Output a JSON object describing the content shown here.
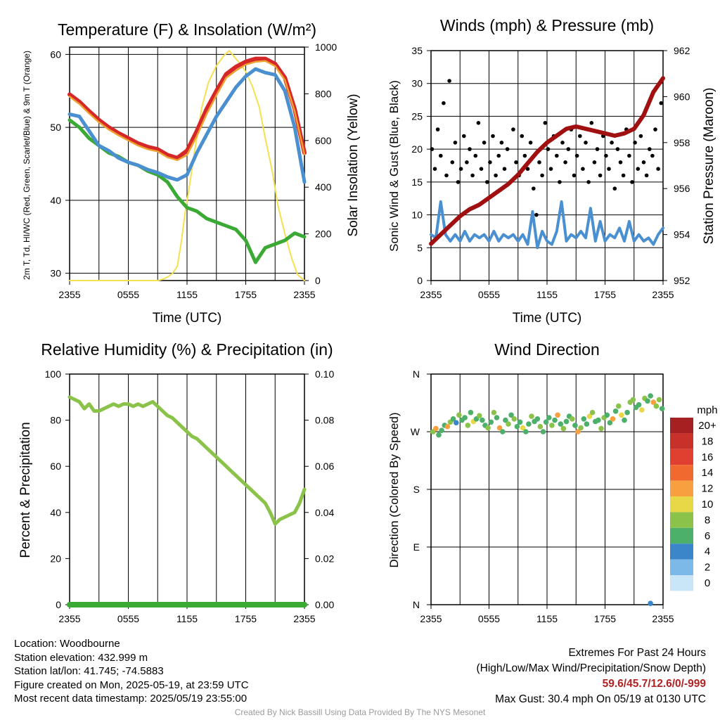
{
  "temperature_panel": {
    "title": "Temperature (F) & Insolation (W/m²)",
    "left_axis_label": "2m T, Td, HI/WC (Red, Green, Scarlet/Blue) & 9m T (Orange)",
    "right_axis_label": "Solar Insolation (Yellow)",
    "x_axis_label": "Time (UTC)"
  },
  "winds_panel": {
    "title": "Winds (mph) & Pressure (mb)",
    "left_axis_label": "Sonic Wind & Gust (Blue, Black)",
    "right_axis_label": "Station Pressure (Maroon)",
    "x_axis_label": "Time (UTC)"
  },
  "humidity_panel": {
    "title": "Relative Humidity (%) & Precipitation (in)",
    "left_axis_label": "Percent & Precipitation"
  },
  "direction_panel": {
    "title": "Wind Direction",
    "left_axis_label": "Direction (Colored By Speed)",
    "legend_title": "mph"
  },
  "footer": {
    "location": "Location: Woodbourne",
    "elevation": "Station elevation: 432.999 m",
    "latlon": "Station lat/lon: 41.745; -74.5883",
    "created": "Figure created on Mon, 2025-05-19, at 23:59 UTC",
    "recent": "Most recent data timestamp: 2025/05/19 23:55:00",
    "extremes_title": "Extremes For Past 24 Hours",
    "extremes_subtitle": "(High/Low/Max Wind/Precipitation/Snow Depth)",
    "extremes_values": "59.6/45.7/12.6/0/-999",
    "max_gust": "Max Gust: 30.4 mph On 05/19 at 0130 UTC",
    "credit": "Created By Nick Bassill Using Data Provided By The NYS Mesonet"
  },
  "colors": {
    "temperature": "#d62728",
    "heat_index_wind_chill": "#2f2f2f",
    "temp_9m": "#f0a030",
    "dewpoint": "#3aaa35",
    "scarlet_blue": "#4a90d0",
    "insolation": "#f5e050",
    "wind": "#4a90d0",
    "gust": "#000000",
    "pressure": "#a01010",
    "humidity": "#8bc34a",
    "precipitation": "#3aaa35"
  },
  "chart_data": [
    {
      "type": "line",
      "x_ticks": [
        "2355",
        "0555",
        "1155",
        "1755",
        "2355"
      ],
      "ylim": [
        29,
        61
      ],
      "y_ticks": [
        30,
        40,
        50,
        60
      ],
      "y2lim": [
        0,
        1000
      ],
      "y2_ticks": [
        0,
        200,
        400,
        600,
        800,
        1000
      ],
      "series": [
        {
          "key": "temp_2m",
          "axis": "left",
          "color": "#d62728",
          "x": [
            0,
            1,
            2,
            3,
            4,
            5,
            6,
            7,
            8,
            9,
            10,
            11,
            12,
            13,
            14,
            15,
            16,
            17,
            18,
            19,
            20,
            21,
            22,
            23,
            24
          ],
          "y": [
            54.5,
            53.5,
            52.2,
            51.0,
            50.0,
            49.2,
            48.5,
            47.8,
            47.3,
            47.0,
            46.2,
            45.8,
            46.8,
            49.5,
            52.5,
            55.0,
            57.3,
            58.3,
            59.0,
            59.4,
            59.4,
            58.7,
            56.8,
            52.5,
            46.5
          ]
        },
        {
          "key": "temp_9m",
          "axis": "left",
          "color": "#f0a030",
          "x": [
            0,
            1,
            2,
            3,
            4,
            5,
            6,
            7,
            8,
            9,
            10,
            11,
            12,
            13,
            14,
            15,
            16,
            17,
            18,
            19,
            20,
            21,
            22,
            23,
            24
          ],
          "y": [
            54.2,
            53.2,
            51.9,
            50.7,
            49.7,
            48.9,
            48.2,
            47.5,
            47.0,
            46.7,
            45.9,
            45.5,
            46.2,
            48.8,
            51.8,
            54.4,
            56.8,
            57.8,
            58.6,
            59.0,
            59.1,
            58.4,
            56.5,
            52.2,
            46.3
          ]
        },
        {
          "key": "heat_index_wind_chill",
          "axis": "left",
          "color": "#4a90d0",
          "x": [
            0,
            1,
            2,
            3,
            4,
            5,
            6,
            7,
            8,
            9,
            10,
            11,
            12,
            13,
            14,
            15,
            16,
            17,
            18,
            19,
            20,
            21,
            22,
            23,
            24
          ],
          "y": [
            51.8,
            51.5,
            49.5,
            47.5,
            46.8,
            45.8,
            45.2,
            44.8,
            44.2,
            43.8,
            43.2,
            42.8,
            43.5,
            46.5,
            49.0,
            51.5,
            53.5,
            55.5,
            57.0,
            58.0,
            57.5,
            57.2,
            55.0,
            50.0,
            42.5
          ]
        },
        {
          "key": "dewpoint",
          "axis": "left",
          "color": "#3aaa35",
          "x": [
            0,
            1,
            2,
            3,
            4,
            5,
            6,
            7,
            8,
            9,
            10,
            11,
            12,
            13,
            14,
            15,
            16,
            17,
            18,
            19,
            20,
            21,
            22,
            23,
            24
          ],
          "y": [
            51.0,
            50.0,
            48.5,
            47.5,
            46.5,
            46.0,
            45.2,
            44.8,
            44.0,
            43.5,
            42.5,
            40.5,
            39.0,
            38.5,
            37.5,
            37.0,
            36.5,
            36.0,
            34.5,
            31.5,
            33.5,
            34.0,
            34.5,
            35.5,
            35.0
          ]
        },
        {
          "key": "insolation",
          "axis": "right",
          "color": "#f5e050",
          "x": [
            0,
            2,
            4,
            6,
            8,
            9,
            9.5,
            10,
            10.5,
            11,
            11.4,
            11.8,
            12.3,
            12.8,
            13.5,
            14.2,
            15,
            15.7,
            16.3,
            16.8,
            17.3,
            18,
            18.7,
            19.4,
            20,
            20.7,
            21.3,
            22,
            22.7,
            23.3,
            24
          ],
          "y": [
            0,
            0,
            0,
            0,
            0,
            0,
            5,
            15,
            30,
            60,
            160,
            290,
            420,
            560,
            740,
            850,
            920,
            960,
            985,
            960,
            935,
            895,
            830,
            740,
            610,
            470,
            320,
            200,
            95,
            25,
            0
          ]
        }
      ]
    },
    {
      "type": "line",
      "x_ticks": [
        "2355",
        "0555",
        "1155",
        "1755",
        "2355"
      ],
      "ylim": [
        0,
        35
      ],
      "y_ticks": [
        0,
        5,
        10,
        15,
        20,
        25,
        30,
        35
      ],
      "y2lim": [
        952,
        962
      ],
      "y2_ticks": [
        952,
        954,
        956,
        958,
        960,
        962
      ],
      "series": [
        {
          "key": "pressure",
          "axis": "right",
          "color": "#a01010",
          "x": [
            0,
            1,
            2,
            3,
            4,
            5,
            6,
            7,
            8,
            9,
            10,
            11,
            12,
            13,
            14,
            15,
            16,
            17,
            18,
            19,
            20,
            21,
            22,
            23,
            24
          ],
          "y": [
            953.6,
            954.0,
            954.4,
            954.8,
            955.1,
            955.3,
            955.6,
            955.9,
            956.2,
            956.6,
            957.1,
            957.6,
            958.0,
            958.3,
            958.6,
            958.7,
            958.6,
            958.5,
            958.4,
            958.3,
            958.4,
            958.6,
            959.2,
            960.2,
            960.8
          ]
        },
        {
          "key": "sonic_wind",
          "axis": "left",
          "color": "#4a90d0",
          "x": [
            0,
            0.5,
            1,
            1.5,
            2,
            2.5,
            3,
            3.5,
            4,
            4.5,
            5,
            5.5,
            6,
            6.5,
            7,
            7.5,
            8,
            8.5,
            9,
            9.5,
            10,
            10.5,
            11,
            11.5,
            12,
            12.5,
            13,
            13.5,
            14,
            14.5,
            15,
            15.5,
            16,
            16.5,
            17,
            17.5,
            18,
            18.5,
            19,
            19.5,
            20,
            20.5,
            21,
            21.5,
            22,
            22.5,
            23,
            23.5,
            24
          ],
          "y": [
            7,
            6.5,
            12,
            7,
            6,
            7,
            6,
            7.5,
            6,
            7,
            6.5,
            7,
            6,
            7.5,
            6,
            7,
            6.5,
            7,
            6,
            7,
            5.5,
            10.5,
            5,
            7.5,
            6,
            5.5,
            7.5,
            12,
            6,
            7,
            6.5,
            7.5,
            6.5,
            11,
            6,
            9,
            6,
            7,
            6.5,
            8,
            6,
            9,
            6,
            7,
            6,
            6.5,
            5.5,
            7,
            8
          ]
        },
        {
          "key": "gust",
          "axis": "left",
          "color": "#000000",
          "style": "scatter",
          "x": [
            0.1,
            0.4,
            0.7,
            1.0,
            1.3,
            1.6,
            1.9,
            2.2,
            2.5,
            2.8,
            3.1,
            3.4,
            3.7,
            4.0,
            4.3,
            4.6,
            4.9,
            5.2,
            5.5,
            5.8,
            6.1,
            6.4,
            6.7,
            7.0,
            7.3,
            7.6,
            7.9,
            8.2,
            8.5,
            8.8,
            9.1,
            9.4,
            9.7,
            10.0,
            10.3,
            10.6,
            10.9,
            11.2,
            11.5,
            11.8,
            12.1,
            12.4,
            12.7,
            13.0,
            13.3,
            13.6,
            13.9,
            14.2,
            14.5,
            14.8,
            15.1,
            15.4,
            15.7,
            16.0,
            16.3,
            16.6,
            16.9,
            17.2,
            17.5,
            17.8,
            18.1,
            18.4,
            18.7,
            19.0,
            19.3,
            19.6,
            19.9,
            20.2,
            20.5,
            20.8,
            21.1,
            21.4,
            21.7,
            22.0,
            22.3,
            22.6,
            22.9,
            23.2,
            23.5,
            23.8
          ],
          "y": [
            20,
            17,
            23,
            19,
            27,
            16,
            30.4,
            18,
            21,
            15,
            17,
            22,
            18,
            20,
            16,
            19,
            24,
            17,
            21,
            15,
            18,
            22,
            16,
            19,
            21,
            17,
            20,
            15,
            23,
            18,
            16,
            22,
            19,
            17,
            21,
            14,
            10,
            18,
            16,
            24,
            20,
            17,
            22,
            19,
            15,
            21,
            18,
            20,
            23,
            16,
            19,
            22,
            17,
            21,
            15,
            24,
            18,
            20,
            16,
            22,
            19,
            17,
            21,
            14,
            20,
            18,
            16,
            23,
            19,
            15,
            21,
            17,
            22,
            18,
            16,
            20,
            19,
            23,
            17,
            27
          ]
        }
      ]
    },
    {
      "type": "line",
      "x_ticks": [
        "2355",
        "0555",
        "1155",
        "1755",
        "2355"
      ],
      "ylim": [
        0,
        100
      ],
      "y_ticks": [
        0,
        20,
        40,
        60,
        80,
        100
      ],
      "y2lim": [
        0,
        0.1
      ],
      "y2_ticks": [
        "0.00",
        "0.02",
        "0.04",
        "0.06",
        "0.08",
        "0.10"
      ],
      "series": [
        {
          "key": "humidity",
          "axis": "left",
          "color": "#8bc34a",
          "x": [
            0,
            0.5,
            1,
            1.5,
            2,
            2.5,
            3,
            3.5,
            4,
            4.5,
            5,
            5.5,
            6,
            6.5,
            7,
            7.5,
            8,
            8.5,
            9,
            9.5,
            10,
            10.5,
            11,
            11.5,
            12,
            12.5,
            13,
            13.5,
            14,
            14.5,
            15,
            15.5,
            16,
            16.5,
            17,
            17.5,
            18,
            18.5,
            19,
            19.5,
            20,
            20.5,
            21,
            21.5,
            22,
            22.5,
            23,
            23.5,
            24
          ],
          "y": [
            90,
            89,
            88,
            85,
            87,
            84,
            84,
            85,
            86,
            87,
            86,
            87,
            87,
            86,
            87,
            86,
            87,
            88,
            86,
            84,
            82,
            81,
            79,
            77,
            75,
            73,
            72,
            70,
            68,
            66,
            64,
            62,
            60,
            58,
            56,
            54,
            52,
            50,
            48,
            46,
            44,
            40,
            35,
            37,
            38,
            39,
            40,
            44,
            50
          ]
        },
        {
          "key": "precipitation",
          "axis": "right",
          "color": "#3aaa35",
          "x": [
            0,
            24
          ],
          "y": [
            0,
            0
          ]
        }
      ]
    },
    {
      "type": "scatter",
      "x_ticks": [
        "2355",
        "0555",
        "1155",
        "1755",
        "2355"
      ],
      "y_ticks": [
        "N",
        "E",
        "S",
        "W",
        "N"
      ],
      "ylim": [
        0,
        360
      ],
      "legend_items": [
        "20+",
        "18",
        "16",
        "14",
        "12",
        "10",
        "8",
        "6",
        "4",
        "2",
        "0"
      ],
      "legend_colors": [
        "#a52020",
        "#c8302a",
        "#e04030",
        "#f06a30",
        "#f8a040",
        "#e8d848",
        "#8bc34a",
        "#4caf6a",
        "#3a86c8",
        "#7cb8e8",
        "#c8e6f8"
      ],
      "x": [
        0.2,
        0.5,
        0.8,
        1.1,
        1.4,
        1.7,
        2.0,
        2.3,
        2.6,
        2.9,
        3.2,
        3.5,
        3.8,
        4.1,
        4.4,
        4.7,
        5.0,
        5.3,
        5.6,
        5.9,
        6.2,
        6.5,
        6.8,
        7.1,
        7.4,
        7.7,
        8.0,
        8.3,
        8.6,
        8.9,
        9.2,
        9.5,
        9.8,
        10.1,
        10.4,
        10.7,
        11.0,
        11.3,
        11.6,
        11.9,
        12.2,
        12.5,
        12.8,
        13.1,
        13.4,
        13.7,
        14.0,
        14.3,
        14.6,
        14.9,
        15.2,
        15.5,
        15.8,
        16.1,
        16.4,
        16.7,
        17.0,
        17.3,
        17.6,
        17.9,
        18.2,
        18.5,
        18.8,
        19.1,
        19.4,
        19.7,
        20.0,
        20.3,
        20.6,
        20.9,
        21.2,
        21.5,
        21.8,
        22.1,
        22.4,
        22.7,
        23.0,
        23.3,
        23.6,
        23.9,
        22.7
      ],
      "y": [
        270,
        275,
        265,
        272,
        280,
        278,
        285,
        290,
        284,
        296,
        288,
        292,
        280,
        300,
        286,
        290,
        295,
        288,
        280,
        276,
        285,
        300,
        292,
        276,
        270,
        288,
        282,
        296,
        290,
        278,
        285,
        276,
        270,
        282,
        294,
        286,
        290,
        278,
        270,
        285,
        292,
        280,
        288,
        296,
        282,
        275,
        286,
        294,
        290,
        280,
        270,
        276,
        290,
        282,
        294,
        300,
        286,
        288,
        275,
        292,
        296,
        284,
        290,
        302,
        310,
        296,
        288,
        300,
        316,
        320,
        308,
        312,
        304,
        322,
        318,
        326,
        316,
        310,
        320,
        306,
        2
      ],
      "speeds": [
        8,
        12,
        6,
        7,
        6,
        12,
        8,
        6,
        4,
        8,
        6,
        7,
        8,
        6,
        10,
        7,
        8,
        6,
        7,
        9,
        6,
        8,
        7,
        12,
        6,
        7,
        9,
        6,
        8,
        7,
        6,
        10,
        7,
        6,
        8,
        6,
        7,
        8,
        6,
        7,
        6,
        8,
        7,
        12,
        6,
        8,
        7,
        6,
        9,
        7,
        12,
        8,
        7,
        6,
        10,
        8,
        7,
        6,
        9,
        8,
        7,
        6,
        12,
        7,
        8,
        10,
        6,
        7,
        8,
        9,
        6,
        7,
        10,
        8,
        6,
        7,
        12,
        9,
        8,
        7,
        4
      ]
    }
  ]
}
